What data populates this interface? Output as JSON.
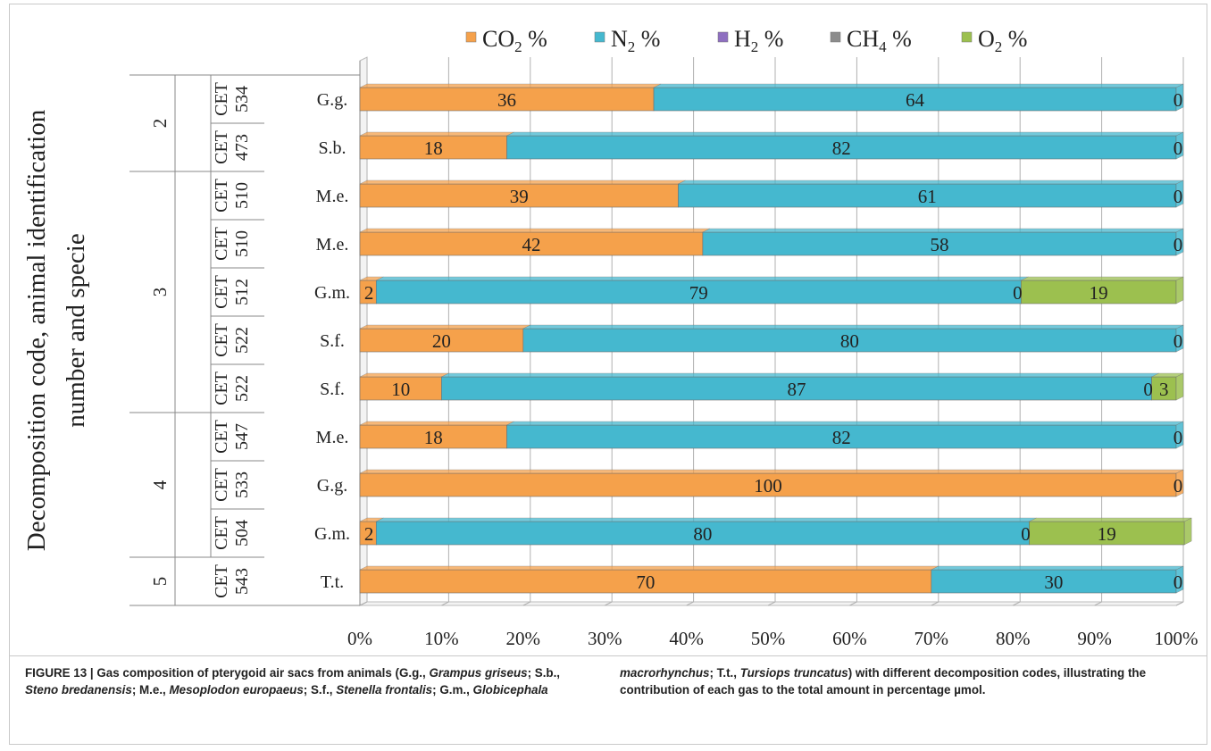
{
  "chart_data": {
    "type": "bar",
    "orientation": "horizontal",
    "stacked": "percent",
    "ylabel": [
      "Decomposition code, animal identification",
      "number and specie"
    ],
    "xlim": [
      0,
      100
    ],
    "xticks": [
      "0%",
      "10%",
      "20%",
      "30%",
      "40%",
      "50%",
      "60%",
      "70%",
      "80%",
      "90%",
      "100%"
    ],
    "legend_position": "top",
    "grid": true,
    "series": [
      {
        "name": "CO2 %",
        "label_main": "CO",
        "label_sub": "2",
        "label_tail": " %",
        "color": "#f5a14b"
      },
      {
        "name": "N2 %",
        "label_main": "N",
        "label_sub": "2",
        "label_tail": " %",
        "color": "#45b8cf"
      },
      {
        "name": "H2 %",
        "label_main": "H",
        "label_sub": "2",
        "label_tail": " %",
        "color": "#8e6fc0"
      },
      {
        "name": "CH4 %",
        "label_main": "CH",
        "label_sub": "4",
        "label_tail": " %",
        "color": "#8c8c8c"
      },
      {
        "name": "O2 %",
        "label_main": "O",
        "label_sub": "2",
        "label_tail": " %",
        "color": "#9cc04f"
      }
    ],
    "groups": [
      {
        "code": "2",
        "rows": 2
      },
      {
        "code": "3",
        "rows": 5
      },
      {
        "code": "4",
        "rows": 3
      },
      {
        "code": "5",
        "rows": 1
      }
    ],
    "rows": [
      {
        "id_top": "CET",
        "id_bottom": "534",
        "prefix": "CET",
        "specie": "G.g.",
        "values": [
          36,
          64,
          0,
          0,
          0
        ],
        "labels": [
          "36",
          "64",
          "",
          "",
          "0"
        ]
      },
      {
        "id_top": "CET",
        "id_bottom": "473",
        "prefix": "CET",
        "specie": "S.b.",
        "values": [
          18,
          82,
          0,
          0,
          0
        ],
        "labels": [
          "18",
          "82",
          "",
          "",
          "0"
        ]
      },
      {
        "id_top": "CET",
        "id_bottom": "510",
        "prefix": "CET",
        "specie": "M.e.",
        "values": [
          39,
          61,
          0,
          0,
          0
        ],
        "labels": [
          "39",
          "61",
          "",
          "",
          "0"
        ]
      },
      {
        "id_top": "CET",
        "id_bottom": "510",
        "prefix": "CET",
        "specie": "M.e.",
        "values": [
          42,
          58,
          0,
          0,
          0
        ],
        "labels": [
          "42",
          "58",
          "",
          "",
          "0"
        ]
      },
      {
        "id_top": "CET",
        "id_bottom": "512",
        "prefix": "CET",
        "specie": "G.m.",
        "values": [
          2,
          79,
          0,
          0,
          19
        ],
        "labels": [
          "2",
          "79",
          "",
          "0",
          "19"
        ]
      },
      {
        "id_top": "CET",
        "id_bottom": "522",
        "prefix": "CET",
        "specie": "S.f.",
        "values": [
          20,
          80,
          0,
          0,
          0
        ],
        "labels": [
          "20",
          "80",
          "",
          "",
          "0"
        ]
      },
      {
        "id_top": "CET",
        "id_bottom": "522",
        "prefix": "CET",
        "specie": "S.f.",
        "values": [
          10,
          87,
          0,
          0,
          3
        ],
        "labels": [
          "10",
          "87",
          "",
          "0",
          "3"
        ]
      },
      {
        "id_top": "CET",
        "id_bottom": "547",
        "prefix": "CET",
        "specie": "M.e.",
        "values": [
          18,
          82,
          0,
          0,
          0
        ],
        "labels": [
          "18",
          "82",
          "",
          "",
          "0"
        ]
      },
      {
        "id_top": "CET",
        "id_bottom": "533",
        "prefix": "CET",
        "specie": "G.g.",
        "values": [
          100,
          0,
          0,
          0,
          0
        ],
        "labels": [
          "100",
          "",
          "",
          "",
          "0"
        ]
      },
      {
        "id_top": "CET",
        "id_bottom": "504",
        "prefix": "CET",
        "specie": "G.m.",
        "values": [
          2,
          80,
          0,
          0,
          19
        ],
        "labels": [
          "2",
          "80",
          "",
          "0",
          "19"
        ]
      },
      {
        "id_top": "CET",
        "id_bottom": "543",
        "prefix": "",
        "specie": "T.t.",
        "values": [
          70,
          30,
          0,
          0,
          0
        ],
        "labels": [
          "70",
          "30",
          "",
          "",
          "0"
        ]
      }
    ]
  },
  "caption": {
    "left": [
      {
        "t": "FIGURE 13 | Gas composition of pterygoid air sacs from animals (G.g., ",
        "s": "b"
      },
      {
        "t": "Grampus griseus",
        "s": "bi"
      },
      {
        "t": "; S.b., ",
        "s": "b"
      },
      {
        "t": "Steno bredanensis",
        "s": "bi"
      },
      {
        "t": "; M.e., ",
        "s": "b"
      },
      {
        "t": "Mesoplodon europaeus",
        "s": "bi"
      },
      {
        "t": "; S.f., ",
        "s": "b"
      },
      {
        "t": "Stenella frontalis",
        "s": "bi"
      },
      {
        "t": "; G.m., ",
        "s": "b"
      },
      {
        "t": "Globicephala",
        "s": "bi"
      }
    ],
    "right": [
      {
        "t": "macrorhynchus",
        "s": "bi"
      },
      {
        "t": "; T.t., ",
        "s": "b"
      },
      {
        "t": "Tursiops truncatus",
        "s": "bi"
      },
      {
        "t": ") with different decomposition codes, illustrating the contribution of each gas to the total amount in percentage µmol.",
        "s": "b"
      }
    ]
  }
}
